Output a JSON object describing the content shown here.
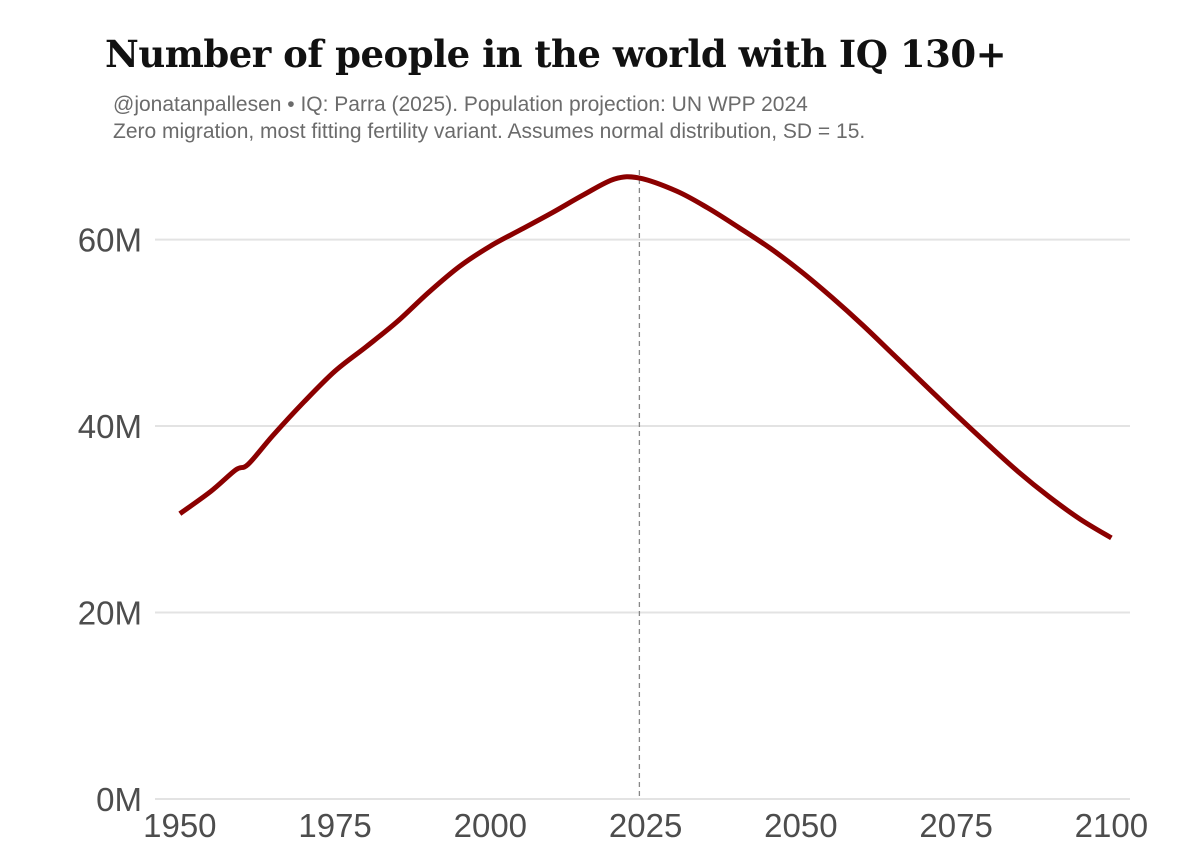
{
  "chart_data": {
    "type": "line",
    "title": "Number of people in the world with IQ 130+",
    "subtitle": [
      "@jonatanpallesen • IQ: Parra (2025). Population projection: UN WPP 2024",
      "Zero migration, most fitting fertility variant. Assumes normal distribution, SD = 15."
    ],
    "xlabel": "",
    "ylabel": "",
    "xlim": [
      1946,
      2103
    ],
    "ylim": [
      0,
      68
    ],
    "x_ticks": [
      1950,
      1975,
      2000,
      2025,
      2050,
      2075,
      2100
    ],
    "x_tick_labels": [
      "1950",
      "1975",
      "2000",
      "2025",
      "2050",
      "2075",
      "2100"
    ],
    "y_ticks": [
      0,
      20,
      40,
      60
    ],
    "y_tick_labels": [
      "0M",
      "20M",
      "40M",
      "60M"
    ],
    "grid": "horizontal",
    "reference_line": {
      "x": 2024,
      "style": "dashed",
      "color": "#888888"
    },
    "series": [
      {
        "name": "People with IQ 130+ (millions)",
        "color": "#8b0000",
        "x": [
          1950,
          1955,
          1959,
          1961,
          1965,
          1970,
          1975,
          1980,
          1985,
          1990,
          1995,
          2000,
          2005,
          2010,
          2015,
          2020,
          2024,
          2030,
          2035,
          2040,
          2045,
          2050,
          2055,
          2060,
          2065,
          2070,
          2075,
          2080,
          2085,
          2090,
          2095,
          2100
        ],
        "values": [
          30.6,
          33.0,
          35.3,
          35.9,
          39.0,
          42.6,
          45.9,
          48.5,
          51.2,
          54.3,
          57.1,
          59.3,
          61.1,
          62.9,
          64.8,
          66.5,
          66.6,
          65.2,
          63.4,
          61.3,
          59.1,
          56.6,
          53.8,
          50.8,
          47.6,
          44.4,
          41.2,
          38.1,
          35.1,
          32.4,
          30.0,
          28.0
        ]
      }
    ]
  }
}
